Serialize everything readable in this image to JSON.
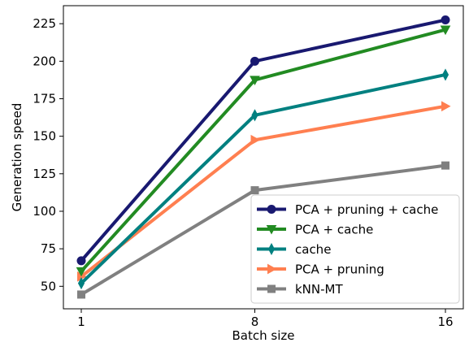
{
  "chart_data": {
    "type": "line",
    "xlabel": "Batch size",
    "ylabel": "Generation speed",
    "x_categories": [
      "1",
      "8",
      "16"
    ],
    "ylim": [
      35,
      237
    ],
    "yticks": [
      50,
      75,
      100,
      125,
      150,
      175,
      200,
      225
    ],
    "grid": false,
    "legend_position": "lower-right",
    "series": [
      {
        "name": "PCA + pruning + cache",
        "color": "#191970",
        "marker": "circle",
        "values": [
          67,
          200,
          227.5
        ]
      },
      {
        "name": "PCA + cache",
        "color": "#228B22",
        "marker": "triangle-down",
        "values": [
          60,
          187.5,
          221
        ]
      },
      {
        "name": "cache",
        "color": "#008080",
        "marker": "thin-diamond",
        "values": [
          52,
          164,
          191
        ]
      },
      {
        "name": "PCA + pruning",
        "color": "#FF7F50",
        "marker": "triangle-right",
        "values": [
          56.5,
          147.5,
          170
        ]
      },
      {
        "name": "kNN-MT",
        "color": "#808080",
        "marker": "square",
        "values": [
          44.5,
          114,
          130.5
        ]
      }
    ]
  }
}
